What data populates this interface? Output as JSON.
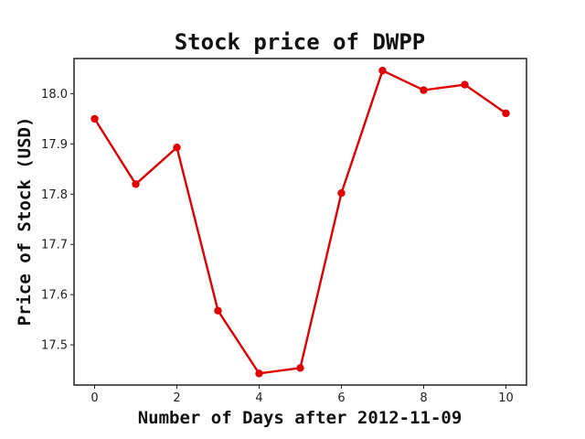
{
  "chart_data": {
    "type": "line",
    "title": "Stock price of DWPP",
    "xlabel": "Number of Days after 2012-11-09",
    "ylabel": "Price of Stock (USD)",
    "x": [
      0,
      1,
      2,
      3,
      4,
      5,
      6,
      7,
      8,
      9,
      10
    ],
    "series": [
      {
        "values": [
          17.95,
          17.82,
          17.893,
          17.568,
          17.443,
          17.454,
          17.802,
          18.046,
          18.007,
          18.018,
          17.961
        ],
        "color": "#e00000"
      }
    ],
    "xticks": [
      "0",
      "2",
      "4",
      "6",
      "8",
      "10"
    ],
    "yticks": [
      "17.5",
      "17.6",
      "17.7",
      "17.8",
      "17.9",
      "18.0"
    ],
    "xlim": [
      -0.5,
      10.5
    ],
    "ylim": [
      17.42,
      18.07
    ],
    "grid": false,
    "legend": "none"
  }
}
